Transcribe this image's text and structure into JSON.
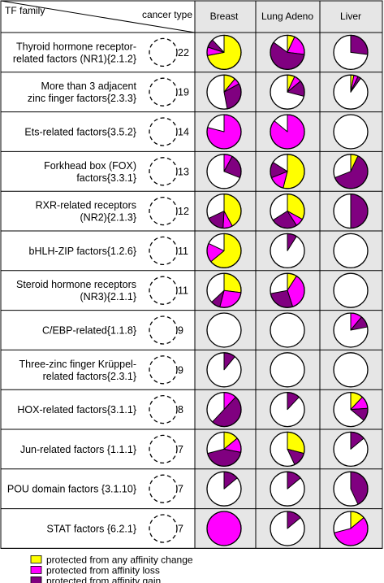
{
  "header": {
    "tf_family_label": "TF family",
    "cancer_type_label": "cancer type",
    "columns": [
      "Breast",
      "Lung Adeno",
      "Liver"
    ]
  },
  "colors": {
    "any_change": "#ffff00",
    "affinity_loss": "#ff00ff",
    "affinity_gain": "#800080",
    "cell_shade": "#e6e6e6"
  },
  "legend": [
    {
      "key": "any_change",
      "label": "protected from any affinity change"
    },
    {
      "key": "affinity_loss",
      "label": "protected from affinity loss"
    },
    {
      "key": "affinity_gain",
      "label": "protected from affinity gain"
    }
  ],
  "chart_data": {
    "type": "pie",
    "note_units": "fractions of each pie",
    "rows": [
      {
        "label": [
          "Thyroid hormone receptor-",
          "related factors (NR1){2.1.2}"
        ],
        "count": 22,
        "breast": {
          "shaded": true,
          "any_change": 0.72,
          "affinity_loss": 0.08,
          "affinity_gain": 0.08
        },
        "lung": {
          "shaded": true,
          "any_change": 0.07,
          "affinity_loss": 0.2,
          "affinity_gain": 0.58
        },
        "liver": {
          "shaded": true,
          "any_change": 0.0,
          "affinity_loss": 0.0,
          "affinity_gain": 0.27
        }
      },
      {
        "label": [
          "More than 3 adjacent",
          "zinc finger factors{2.3.3}"
        ],
        "count": 19,
        "breast": {
          "shaded": true,
          "any_change": 0.11,
          "affinity_loss": 0.06,
          "affinity_gain": 0.3
        },
        "lung": {
          "shaded": true,
          "any_change": 0.07,
          "affinity_loss": 0.07,
          "affinity_gain": 0.15
        },
        "liver": {
          "shaded": true,
          "any_change": 0.03,
          "affinity_loss": 0.04,
          "affinity_gain": 0.03
        }
      },
      {
        "label": [
          "Ets-related factors{3.5.2}"
        ],
        "count": 14,
        "breast": {
          "shaded": true,
          "any_change": 0.0,
          "affinity_loss": 0.79,
          "affinity_gain": 0.0
        },
        "lung": {
          "shaded": true,
          "any_change": 0.0,
          "affinity_loss": 0.86,
          "affinity_gain": 0.0
        },
        "liver": {
          "shaded": true,
          "any_change": 0.0,
          "affinity_loss": 0.0,
          "affinity_gain": 0.0
        }
      },
      {
        "label": [
          "Forkhead box (FOX)",
          "factors{3.3.1}"
        ],
        "count": 13,
        "breast": {
          "shaded": true,
          "any_change": 0.0,
          "affinity_loss": 0.08,
          "affinity_gain": 0.23
        },
        "lung": {
          "shaded": true,
          "any_change": 0.54,
          "affinity_loss": 0.15,
          "affinity_gain": 0.15
        },
        "liver": {
          "shaded": true,
          "any_change": 0.07,
          "affinity_loss": 0.0,
          "affinity_gain": 0.62
        }
      },
      {
        "label": [
          "RXR-related receptors",
          "(NR2){2.1.3}"
        ],
        "count": 12,
        "breast": {
          "shaded": true,
          "any_change": 0.42,
          "affinity_loss": 0.09,
          "affinity_gain": 0.17
        },
        "lung": {
          "shaded": true,
          "any_change": 0.33,
          "affinity_loss": 0.08,
          "affinity_gain": 0.25
        },
        "liver": {
          "shaded": true,
          "any_change": 0.0,
          "affinity_loss": 0.0,
          "affinity_gain": 0.5
        }
      },
      {
        "label": [
          "bHLH-ZIP factors{1.2.6}"
        ],
        "count": 11,
        "breast": {
          "shaded": true,
          "any_change": 0.64,
          "affinity_loss": 0.18,
          "affinity_gain": 0.0
        },
        "lung": {
          "shaded": true,
          "any_change": 0.0,
          "affinity_loss": 0.0,
          "affinity_gain": 0.09
        },
        "liver": {
          "shaded": true,
          "any_change": 0.0,
          "affinity_loss": 0.0,
          "affinity_gain": 0.0
        }
      },
      {
        "label": [
          "Steroid hormone receptors",
          "(NR3){2.1.1}"
        ],
        "count": 11,
        "breast": {
          "shaded": true,
          "any_change": 0.27,
          "affinity_loss": 0.27,
          "affinity_gain": 0.09
        },
        "lung": {
          "shaded": true,
          "any_change": 0.09,
          "affinity_loss": 0.36,
          "affinity_gain": 0.27
        },
        "liver": {
          "shaded": true,
          "any_change": 0.0,
          "affinity_loss": 0.0,
          "affinity_gain": 0.0
        }
      },
      {
        "label": [
          "C/EBP-related{1.1.8}"
        ],
        "count": 9,
        "breast": {
          "shaded": true,
          "any_change": 0.0,
          "affinity_loss": 0.0,
          "affinity_gain": 0.0
        },
        "lung": {
          "shaded": true,
          "any_change": 0.0,
          "affinity_loss": 0.0,
          "affinity_gain": 0.0
        },
        "liver": {
          "shaded": true,
          "any_change": 0.0,
          "affinity_loss": 0.11,
          "affinity_gain": 0.11
        }
      },
      {
        "label": [
          "Three-zinc finger Krüppel-",
          "related factors{2.3.1}"
        ],
        "count": 9,
        "breast": {
          "shaded": true,
          "any_change": 0.0,
          "affinity_loss": 0.0,
          "affinity_gain": 0.11
        },
        "lung": {
          "shaded": true,
          "any_change": 0.0,
          "affinity_loss": 0.0,
          "affinity_gain": 0.0
        },
        "liver": {
          "shaded": true,
          "any_change": 0.0,
          "affinity_loss": 0.0,
          "affinity_gain": 0.0
        }
      },
      {
        "label": [
          "HOX-related factors{3.1.1}"
        ],
        "count": 8,
        "breast": {
          "shaded": true,
          "any_change": 0.0,
          "affinity_loss": 0.12,
          "affinity_gain": 0.5
        },
        "lung": {
          "shaded": true,
          "any_change": 0.0,
          "affinity_loss": 0.0,
          "affinity_gain": 0.12
        },
        "liver": {
          "shaded": true,
          "any_change": 0.12,
          "affinity_loss": 0.12,
          "affinity_gain": 0.12
        }
      },
      {
        "label": [
          "Jun-related factors {1.1.1}"
        ],
        "count": 7,
        "breast": {
          "shaded": true,
          "any_change": 0.14,
          "affinity_loss": 0.14,
          "affinity_gain": 0.43
        },
        "lung": {
          "shaded": true,
          "any_change": 0.29,
          "affinity_loss": 0.0,
          "affinity_gain": 0.14
        },
        "liver": {
          "shaded": true,
          "any_change": 0.0,
          "affinity_loss": 0.0,
          "affinity_gain": 0.14
        }
      },
      {
        "label": [
          "POU domain factors {3.1.10}"
        ],
        "count": 7,
        "breast": {
          "shaded": true,
          "any_change": 0.0,
          "affinity_loss": 0.0,
          "affinity_gain": 0.14
        },
        "lung": {
          "shaded": true,
          "any_change": 0.0,
          "affinity_loss": 0.0,
          "affinity_gain": 0.14
        },
        "liver": {
          "shaded": true,
          "any_change": 0.0,
          "affinity_loss": 0.0,
          "affinity_gain": 0.43
        }
      },
      {
        "label": [
          "STAT factors {6.2.1}"
        ],
        "count": 7,
        "breast": {
          "shaded": true,
          "any_change": 0.0,
          "affinity_loss": 1.0,
          "affinity_gain": 0.0
        },
        "lung": {
          "shaded": true,
          "any_change": 0.0,
          "affinity_loss": 0.0,
          "affinity_gain": 0.14
        },
        "liver": {
          "shaded": true,
          "any_change": 0.14,
          "affinity_loss": 0.57,
          "affinity_gain": 0.0
        }
      }
    ]
  }
}
